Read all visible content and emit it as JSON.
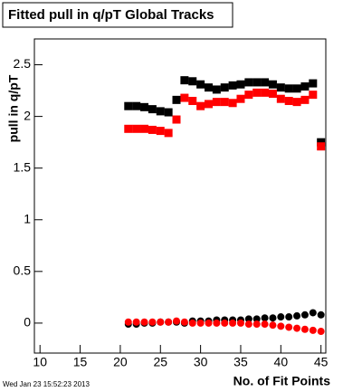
{
  "chart_data": {
    "type": "scatter",
    "title": "Fitted pull in q/pT  Global Tracks",
    "x_label": "No. of Fit Points",
    "y_label": "pull in q/pT",
    "timestamp": "Wed Jan 23 15:52:23 2013",
    "x": [
      21,
      22,
      23,
      24,
      25,
      26,
      27,
      28,
      29,
      30,
      31,
      32,
      33,
      34,
      35,
      36,
      37,
      38,
      39,
      40,
      41,
      42,
      43,
      44,
      45
    ],
    "series": [
      {
        "color": "#000000",
        "marker": "square",
        "values": [
          2.1,
          2.1,
          2.09,
          2.07,
          2.05,
          2.04,
          2.16,
          2.35,
          2.34,
          2.31,
          2.28,
          2.26,
          2.28,
          2.3,
          2.31,
          2.33,
          2.33,
          2.33,
          2.31,
          2.28,
          2.27,
          2.27,
          2.29,
          2.32,
          1.75
        ]
      },
      {
        "color": "#ff0000",
        "marker": "square",
        "values": [
          1.88,
          1.88,
          1.88,
          1.87,
          1.86,
          1.84,
          1.97,
          2.18,
          2.15,
          2.1,
          2.12,
          2.14,
          2.14,
          2.13,
          2.17,
          2.21,
          2.23,
          2.23,
          2.22,
          2.17,
          2.15,
          2.14,
          2.16,
          2.21,
          1.71
        ]
      },
      {
        "color": "#000000",
        "marker": "circle",
        "values": [
          -0.01,
          -0.01,
          0,
          0,
          0.01,
          0.01,
          0.01,
          0,
          0.02,
          0.02,
          0.02,
          0.03,
          0.03,
          0.03,
          0.03,
          0.04,
          0.04,
          0.05,
          0.05,
          0.06,
          0.06,
          0.07,
          0.08,
          0.1,
          0.08
        ]
      },
      {
        "color": "#ff0000",
        "marker": "circle",
        "values": [
          0.01,
          0.01,
          0.01,
          0.01,
          0.01,
          0.01,
          0.02,
          0.01,
          0,
          0,
          0,
          0,
          0,
          0,
          0,
          -0.01,
          -0.01,
          -0.01,
          -0.02,
          -0.03,
          -0.04,
          -0.05,
          -0.06,
          -0.07,
          -0.08
        ]
      }
    ],
    "xlim": [
      9.3,
      45.6
    ],
    "ylim": [
      -0.29,
      2.75
    ],
    "xticks": [
      10,
      15,
      20,
      25,
      30,
      35,
      40,
      45
    ],
    "yticks": [
      0,
      0.5,
      1,
      1.5,
      2,
      2.5
    ]
  }
}
